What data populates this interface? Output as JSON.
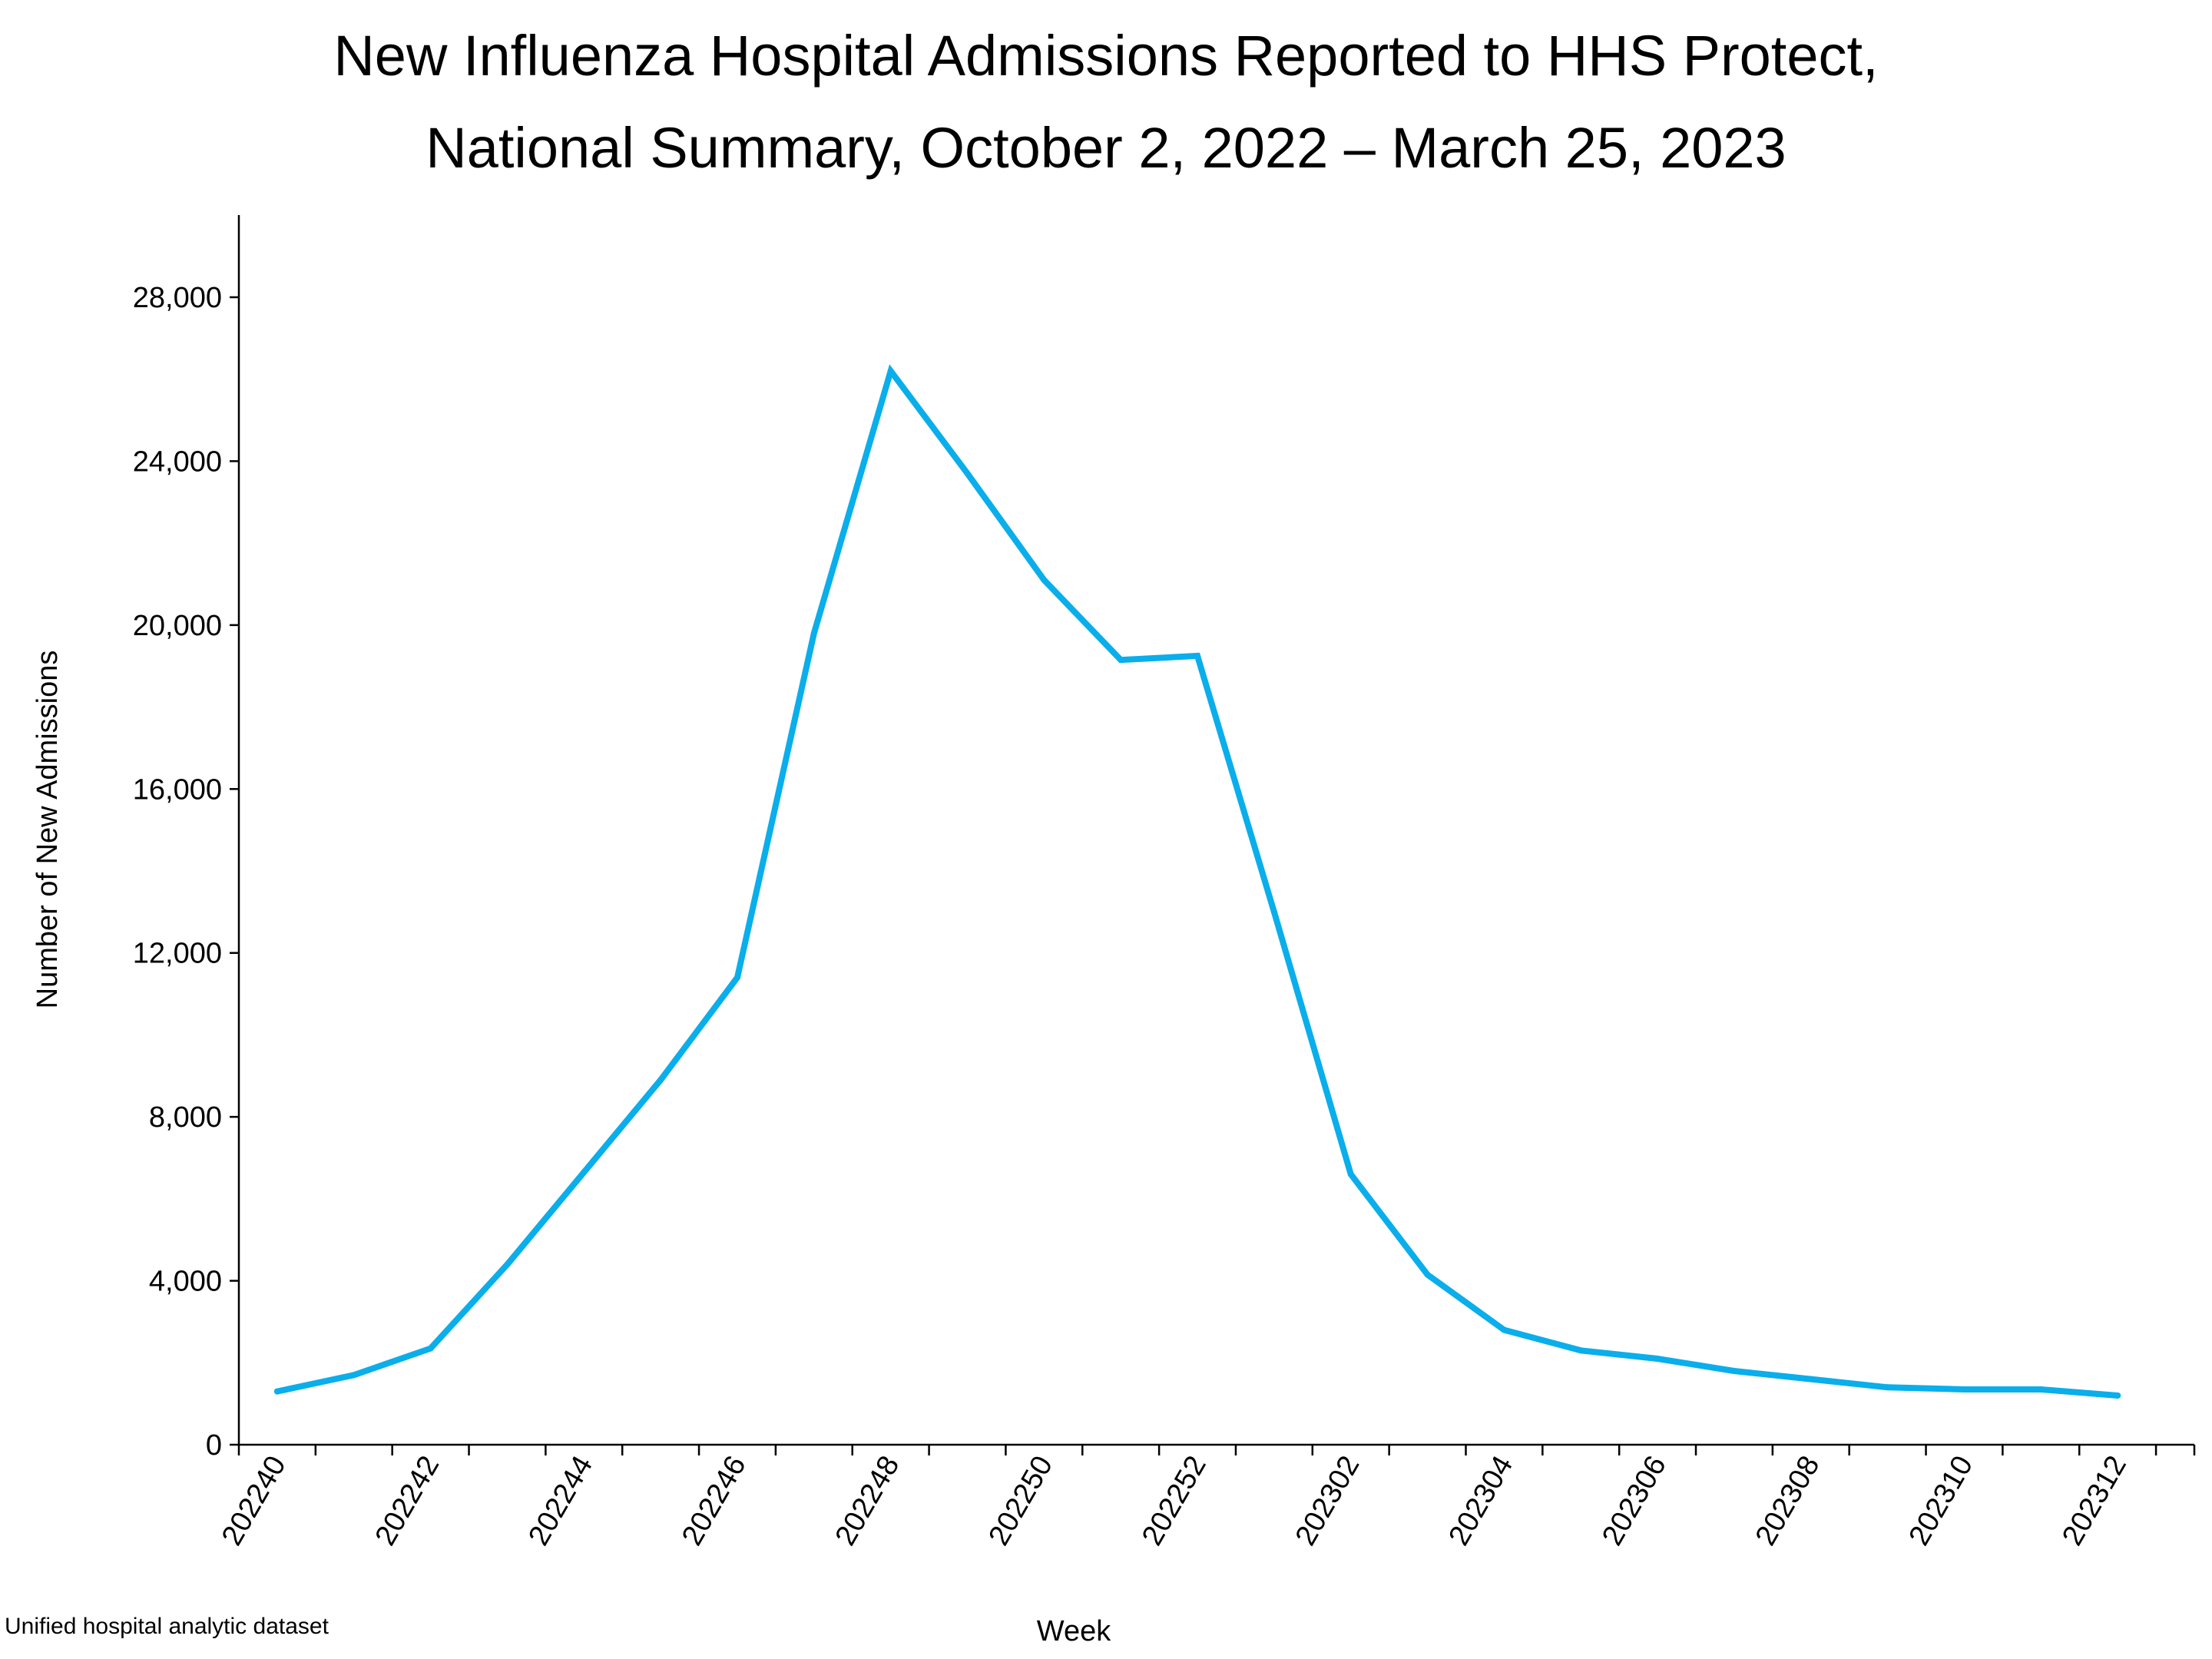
{
  "chart_data": {
    "type": "line",
    "title_lines": [
      "New Influenza Hospital Admissions Reported to HHS Protect,",
      "National Summary, October 2, 2022 – March 25, 2023"
    ],
    "xlabel": "Week",
    "ylabel": "Number of New Admissions",
    "footnote": "Unified hospital analytic dataset",
    "ylim": [
      0,
      30000
    ],
    "yticks": [
      0,
      4000,
      8000,
      12000,
      16000,
      20000,
      24000,
      28000
    ],
    "ytick_labels": [
      "0",
      "4,000",
      "8,000",
      "12,000",
      "16,000",
      "20,000",
      "24,000",
      "28,000"
    ],
    "xtick_labels": [
      "202240",
      "202242",
      "202244",
      "202246",
      "202248",
      "202250",
      "202252",
      "202302",
      "202304",
      "202306",
      "202308",
      "202310",
      "202312"
    ],
    "x": [
      "202240",
      "202241",
      "202242",
      "202243",
      "202244",
      "202245",
      "202246",
      "202247",
      "202248",
      "202249",
      "202250",
      "202251",
      "202252",
      "202301",
      "202302",
      "202303",
      "202304",
      "202305",
      "202306",
      "202307",
      "202308",
      "202309",
      "202310",
      "202311",
      "202312"
    ],
    "series": [
      {
        "color": "#0AAEEB",
        "values": [
          1300,
          1700,
          2350,
          4400,
          6650,
          8900,
          11400,
          19800,
          26200,
          23700,
          21100,
          19150,
          19250,
          13000,
          6600,
          4150,
          2800,
          2300,
          2100,
          1800,
          1600,
          1400,
          1350,
          1350,
          1200
        ]
      }
    ],
    "grid": false,
    "legend": "none"
  }
}
